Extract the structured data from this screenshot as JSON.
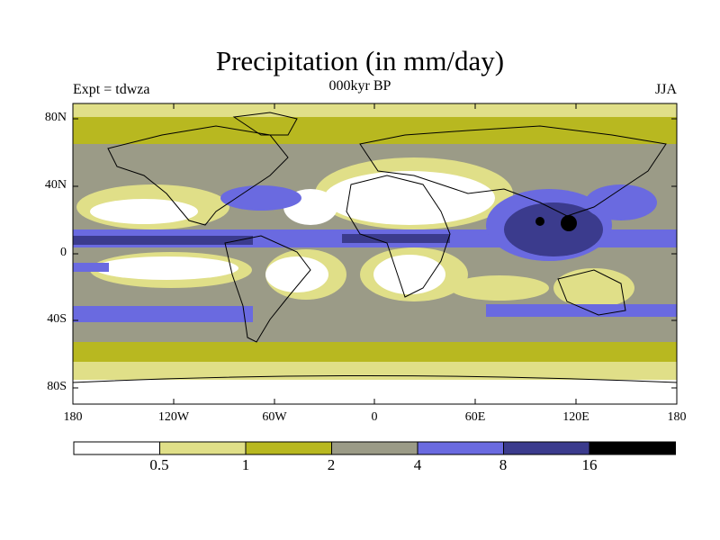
{
  "title": "Precipitation (in mm/day)",
  "experiment_label": "Expt = tdwza",
  "period_label": "000kyr BP",
  "season_label": "JJA",
  "map": {
    "projection": "equirectangular",
    "lon_range": [
      -180,
      180
    ],
    "lat_range": [
      -90,
      90
    ],
    "y_ticks": [
      "80N",
      "40N",
      "0",
      "40S",
      "80S"
    ],
    "x_ticks": [
      "180",
      "120W",
      "60W",
      "0",
      "60E",
      "120E",
      "180"
    ]
  },
  "colorbar": {
    "levels": [
      "0.5",
      "1",
      "2",
      "4",
      "8",
      "16"
    ],
    "colors": [
      "#ffffff",
      "#e0df88",
      "#b8b820",
      "#9b9b87",
      "#6a6ae0",
      "#3b3b8d",
      "#000000"
    ]
  }
}
